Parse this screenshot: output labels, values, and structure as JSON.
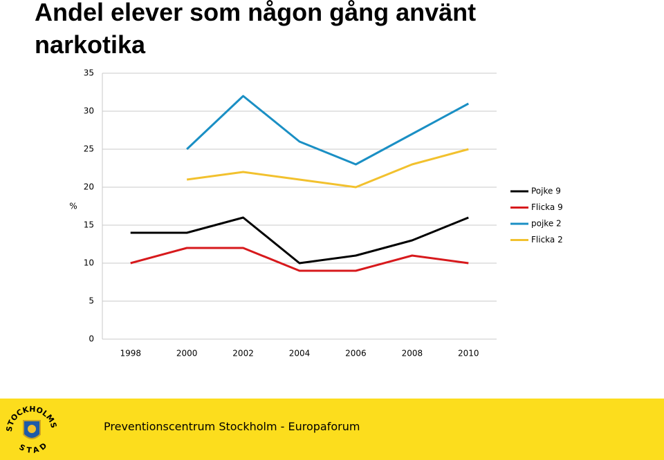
{
  "chart_data": {
    "type": "line",
    "title": "Andel elever som någon gång använt narkotika",
    "y_label": "%",
    "categories": [
      "1998",
      "2000",
      "2002",
      "2004",
      "2006",
      "2008",
      "2010"
    ],
    "series": [
      {
        "name": "Pojke 9",
        "color": "#000000",
        "values": [
          14,
          14,
          16,
          10,
          11,
          13,
          16
        ]
      },
      {
        "name": "Flicka 9",
        "color": "#d7191c",
        "values": [
          10,
          12,
          12,
          9,
          9,
          11,
          10
        ]
      },
      {
        "name": "pojke 2",
        "color": "#1a8fc4",
        "values": [
          null,
          25,
          32,
          26,
          23,
          27,
          31
        ]
      },
      {
        "name": "Flicka  2",
        "color": "#f2c12e",
        "values": [
          null,
          21,
          22,
          21,
          20,
          23,
          25
        ]
      }
    ],
    "ylim": [
      0,
      35
    ],
    "yticks": [
      0,
      5,
      10,
      15,
      20,
      25,
      30,
      35
    ],
    "grid": true,
    "legend": "right"
  },
  "footer": {
    "text": "Preventionscentrum Stockholm - Europaforum",
    "logo_top": "STOCKHOLMS",
    "logo_bottom": "STAD"
  }
}
